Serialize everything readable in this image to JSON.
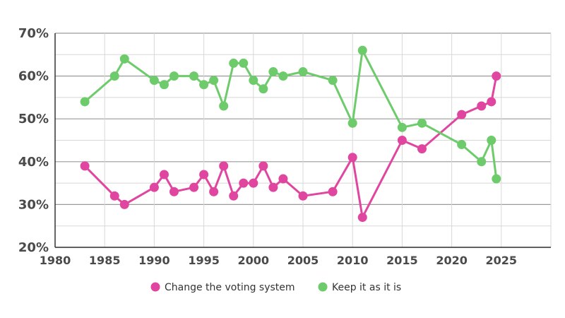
{
  "chart_data": {
    "type": "line",
    "title": "",
    "xlabel": "",
    "ylabel": "",
    "xlim": [
      1980,
      2030
    ],
    "ylim": [
      20,
      70
    ],
    "grid": true,
    "legend_position": "bottom-center",
    "x_ticks": [
      1980,
      1985,
      1990,
      1995,
      2000,
      2005,
      2010,
      2015,
      2020,
      2025
    ],
    "x_tick_labels": [
      "1980",
      "1985",
      "1990",
      "1995",
      "2000",
      "2005",
      "2010",
      "2015",
      "2020",
      "2025"
    ],
    "y_ticks": [
      20,
      30,
      40,
      50,
      60,
      70
    ],
    "y_tick_labels": [
      "20%",
      "30%",
      "40%",
      "50%",
      "60%",
      "70%"
    ],
    "series": [
      {
        "name": "Change the voting system",
        "color": "#e0469f",
        "x": [
          1983,
          1986,
          1987,
          1990,
          1991,
          1992,
          1994,
          1995,
          1996,
          1997,
          1998,
          1999,
          2000,
          2001,
          2002,
          2003,
          2005,
          2008,
          2010,
          2011,
          2015,
          2017,
          2021,
          2023,
          2024,
          2024.5
        ],
        "y": [
          39,
          32,
          30,
          34,
          37,
          33,
          34,
          37,
          33,
          39,
          32,
          35,
          35,
          39,
          34,
          36,
          32,
          33,
          41,
          27,
          45,
          43,
          51,
          53,
          54,
          60
        ]
      },
      {
        "name": "Keep it as it is",
        "color": "#6ecb6b",
        "x": [
          1983,
          1986,
          1987,
          1990,
          1991,
          1992,
          1994,
          1995,
          1996,
          1997,
          1998,
          1999,
          2000,
          2001,
          2002,
          2003,
          2005,
          2008,
          2010,
          2011,
          2015,
          2017,
          2021,
          2023,
          2024,
          2024.5
        ],
        "y": [
          54,
          60,
          64,
          59,
          58,
          60,
          60,
          58,
          59,
          53,
          63,
          63,
          59,
          57,
          61,
          60,
          61,
          59,
          49,
          66,
          48,
          49,
          44,
          40,
          45,
          36
        ]
      }
    ]
  }
}
